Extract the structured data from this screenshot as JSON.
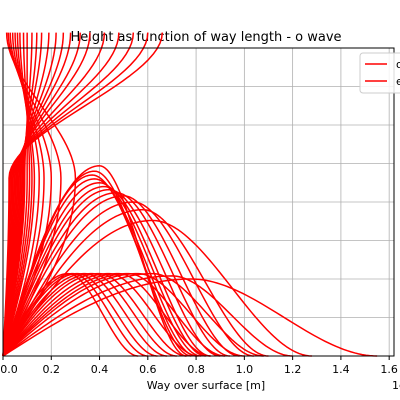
{
  "chart_data": {
    "type": "line",
    "title": "Height as function of way length - o wave",
    "xlabel": "Way over surface [m]",
    "x_offset_text": "1e",
    "xlim": [
      0.0,
      1.62
    ],
    "ylim": [
      0,
      400
    ],
    "xticks": [
      "0.0",
      "0.2",
      "0.4",
      "0.6",
      "0.8",
      "1.0",
      "1.2",
      "1.4",
      "1.6"
    ],
    "grid": true,
    "legend_position": "top-right",
    "legend_entries": [
      "o",
      "e"
    ],
    "series_color": "#ff0000",
    "series": {
      "escaping_rays": [
        {
          "apex_x": 0.3,
          "final_x": 0.015
        },
        {
          "apex_x": 0.24,
          "final_x": 0.022
        },
        {
          "apex_x": 0.2,
          "final_x": 0.03
        },
        {
          "apex_x": 0.17,
          "final_x": 0.04
        },
        {
          "apex_x": 0.15,
          "final_x": 0.05
        },
        {
          "apex_x": 0.13,
          "final_x": 0.06
        },
        {
          "apex_x": 0.12,
          "final_x": 0.07
        },
        {
          "apex_x": 0.11,
          "final_x": 0.085
        },
        {
          "apex_x": 0.1,
          "final_x": 0.1
        },
        {
          "apex_x": 0.09,
          "final_x": 0.12
        },
        {
          "apex_x": 0.085,
          "final_x": 0.14
        },
        {
          "apex_x": 0.08,
          "final_x": 0.16
        },
        {
          "apex_x": 0.075,
          "final_x": 0.19
        },
        {
          "apex_x": 0.07,
          "final_x": 0.22
        },
        {
          "apex_x": 0.065,
          "final_x": 0.25
        },
        {
          "apex_x": 0.06,
          "final_x": 0.28
        },
        {
          "apex_x": 0.055,
          "final_x": 0.32
        },
        {
          "apex_x": 0.05,
          "final_x": 0.36
        },
        {
          "apex_x": 0.045,
          "final_x": 0.42
        },
        {
          "apex_x": 0.04,
          "final_x": 0.48
        },
        {
          "apex_x": 0.035,
          "final_x": 0.54
        },
        {
          "apex_x": 0.03,
          "final_x": 0.6
        },
        {
          "apex_x": 0.025,
          "final_x": 0.66
        }
      ],
      "high_arcs": [
        {
          "peak_x": 0.4,
          "peak_y": 247,
          "end_x": 0.76
        },
        {
          "peak_x": 0.38,
          "peak_y": 240,
          "end_x": 0.78
        },
        {
          "peak_x": 0.37,
          "peak_y": 235,
          "end_x": 0.8
        },
        {
          "peak_x": 0.38,
          "peak_y": 230,
          "end_x": 0.82
        },
        {
          "peak_x": 0.4,
          "peak_y": 225,
          "end_x": 0.84
        },
        {
          "peak_x": 0.42,
          "peak_y": 220,
          "end_x": 0.86
        },
        {
          "peak_x": 0.44,
          "peak_y": 216,
          "end_x": 0.9
        },
        {
          "peak_x": 0.47,
          "peak_y": 212,
          "end_x": 0.94
        },
        {
          "peak_x": 0.5,
          "peak_y": 208,
          "end_x": 0.98
        },
        {
          "peak_x": 0.54,
          "peak_y": 200,
          "end_x": 1.04
        },
        {
          "peak_x": 0.58,
          "peak_y": 190,
          "end_x": 1.1
        },
        {
          "peak_x": 0.62,
          "peak_y": 176,
          "end_x": 1.28
        }
      ],
      "low_arcs": [
        {
          "peak_x": 0.27,
          "peak_y": 107,
          "end_x": 0.56
        },
        {
          "peak_x": 0.29,
          "peak_y": 107,
          "end_x": 0.6
        },
        {
          "peak_x": 0.31,
          "peak_y": 107,
          "end_x": 0.64
        },
        {
          "peak_x": 0.34,
          "peak_y": 107,
          "end_x": 0.68
        },
        {
          "peak_x": 0.37,
          "peak_y": 107,
          "end_x": 0.72
        },
        {
          "peak_x": 0.4,
          "peak_y": 107,
          "end_x": 0.76
        },
        {
          "peak_x": 0.44,
          "peak_y": 107,
          "end_x": 0.81
        },
        {
          "peak_x": 0.48,
          "peak_y": 107,
          "end_x": 0.86
        },
        {
          "peak_x": 0.52,
          "peak_y": 107,
          "end_x": 0.92
        },
        {
          "peak_x": 0.56,
          "peak_y": 107,
          "end_x": 1.0
        },
        {
          "peak_x": 0.62,
          "peak_y": 107,
          "end_x": 1.08
        },
        {
          "peak_x": 0.7,
          "peak_y": 104,
          "end_x": 1.2
        },
        {
          "peak_x": 0.78,
          "peak_y": 100,
          "end_x": 1.55
        }
      ]
    }
  }
}
